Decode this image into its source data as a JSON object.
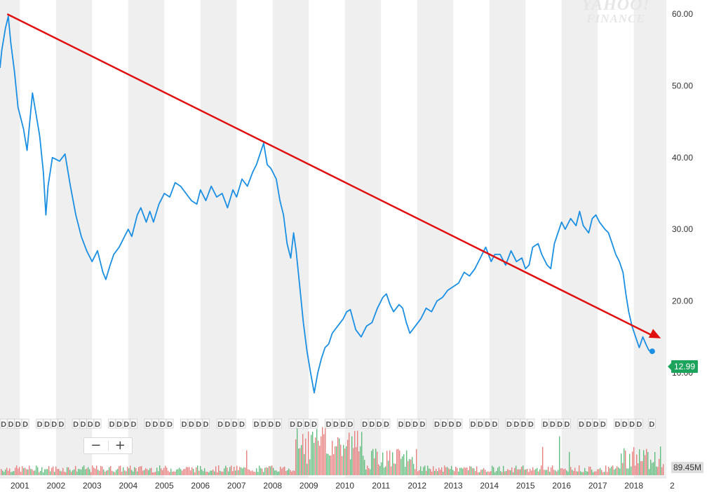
{
  "watermark": {
    "line1": "YAHOO!",
    "line2": "FINANCE"
  },
  "zoom": {
    "minus": "−",
    "plus": "+"
  },
  "badges": {
    "last_price": "12.99",
    "volume": "89.45M"
  },
  "colors": {
    "price_line": "#1a8fe3",
    "trend_arrow": "#e01010",
    "vol_up": "#48b36a",
    "vol_down": "#e46a6a",
    "band": "#efefef",
    "price_badge": "#1ca35c"
  },
  "chart_data": {
    "type": "line",
    "x_unit": "year",
    "xlim": [
      2000.45,
      2018.9
    ],
    "ylim": [
      5,
      60.5
    ],
    "y_ticks": [
      10,
      20,
      30,
      40,
      50,
      60
    ],
    "y_tick_labels": [
      "10.00",
      "20.00",
      "30.00",
      "40.00",
      "50.00",
      "60.00"
    ],
    "x_ticks": [
      2001,
      2002,
      2003,
      2004,
      2005,
      2006,
      2007,
      2008,
      2009,
      2010,
      2011,
      2012,
      2013,
      2014,
      2015,
      2016,
      2017,
      2018
    ],
    "x_tick_labels": [
      "2001",
      "2002",
      "2003",
      "2004",
      "2005",
      "2006",
      "2007",
      "2008",
      "2009",
      "2010",
      "2011",
      "2012",
      "2013",
      "2014",
      "2015",
      "2016",
      "2017",
      "2018"
    ],
    "x_tick_cutoff_label": "2",
    "series": [
      {
        "values": [
          [
            2000.45,
            52.5
          ],
          [
            2000.5,
            55
          ],
          [
            2000.6,
            58
          ],
          [
            2000.68,
            59.7
          ],
          [
            2000.75,
            56
          ],
          [
            2000.85,
            52
          ],
          [
            2000.95,
            47
          ],
          [
            2001.1,
            44
          ],
          [
            2001.2,
            41
          ],
          [
            2001.35,
            49
          ],
          [
            2001.45,
            46
          ],
          [
            2001.55,
            43
          ],
          [
            2001.65,
            38
          ],
          [
            2001.72,
            32
          ],
          [
            2001.78,
            36
          ],
          [
            2001.9,
            40
          ],
          [
            2002.1,
            39.5
          ],
          [
            2002.25,
            40.5
          ],
          [
            2002.4,
            36
          ],
          [
            2002.55,
            32
          ],
          [
            2002.7,
            29
          ],
          [
            2002.85,
            27
          ],
          [
            2003.0,
            25.5
          ],
          [
            2003.15,
            27
          ],
          [
            2003.3,
            24
          ],
          [
            2003.38,
            23
          ],
          [
            2003.5,
            25
          ],
          [
            2003.6,
            26.5
          ],
          [
            2003.75,
            27.5
          ],
          [
            2003.9,
            29
          ],
          [
            2004.0,
            30
          ],
          [
            2004.1,
            29
          ],
          [
            2004.25,
            32
          ],
          [
            2004.35,
            33
          ],
          [
            2004.5,
            31
          ],
          [
            2004.6,
            32.5
          ],
          [
            2004.7,
            31
          ],
          [
            2004.85,
            33.5
          ],
          [
            2005.0,
            35
          ],
          [
            2005.15,
            34.5
          ],
          [
            2005.3,
            36.5
          ],
          [
            2005.45,
            36
          ],
          [
            2005.6,
            35
          ],
          [
            2005.75,
            34
          ],
          [
            2005.9,
            33.5
          ],
          [
            2006.0,
            35.5
          ],
          [
            2006.15,
            34
          ],
          [
            2006.3,
            36
          ],
          [
            2006.45,
            34.5
          ],
          [
            2006.6,
            35
          ],
          [
            2006.75,
            33
          ],
          [
            2006.9,
            35.5
          ],
          [
            2007.0,
            34.5
          ],
          [
            2007.15,
            37
          ],
          [
            2007.3,
            36
          ],
          [
            2007.45,
            38
          ],
          [
            2007.55,
            39
          ],
          [
            2007.65,
            40.5
          ],
          [
            2007.75,
            42
          ],
          [
            2007.85,
            39
          ],
          [
            2007.95,
            38.5
          ],
          [
            2008.1,
            37
          ],
          [
            2008.2,
            34
          ],
          [
            2008.3,
            32
          ],
          [
            2008.4,
            28
          ],
          [
            2008.5,
            26
          ],
          [
            2008.58,
            29.5
          ],
          [
            2008.65,
            27
          ],
          [
            2008.75,
            22
          ],
          [
            2008.85,
            17
          ],
          [
            2008.95,
            13
          ],
          [
            2009.05,
            10
          ],
          [
            2009.15,
            7.2
          ],
          [
            2009.25,
            10
          ],
          [
            2009.35,
            12
          ],
          [
            2009.45,
            13.5
          ],
          [
            2009.55,
            14
          ],
          [
            2009.65,
            15.5
          ],
          [
            2009.8,
            16.5
          ],
          [
            2009.95,
            17.5
          ],
          [
            2010.05,
            18.5
          ],
          [
            2010.15,
            18.8
          ],
          [
            2010.3,
            16
          ],
          [
            2010.45,
            15
          ],
          [
            2010.6,
            16.5
          ],
          [
            2010.75,
            17
          ],
          [
            2010.9,
            19
          ],
          [
            2011.05,
            20.5
          ],
          [
            2011.15,
            21
          ],
          [
            2011.25,
            19.5
          ],
          [
            2011.35,
            18.5
          ],
          [
            2011.5,
            19.5
          ],
          [
            2011.6,
            19
          ],
          [
            2011.7,
            17
          ],
          [
            2011.8,
            15.5
          ],
          [
            2011.95,
            16.5
          ],
          [
            2012.1,
            17.5
          ],
          [
            2012.25,
            19
          ],
          [
            2012.4,
            18.5
          ],
          [
            2012.55,
            20
          ],
          [
            2012.7,
            20.5
          ],
          [
            2012.85,
            21.5
          ],
          [
            2013.0,
            22
          ],
          [
            2013.15,
            22.5
          ],
          [
            2013.3,
            24
          ],
          [
            2013.45,
            23.5
          ],
          [
            2013.6,
            24.5
          ],
          [
            2013.75,
            26
          ],
          [
            2013.9,
            27.5
          ],
          [
            2014.05,
            25.5
          ],
          [
            2014.15,
            26.5
          ],
          [
            2014.3,
            26.5
          ],
          [
            2014.45,
            25
          ],
          [
            2014.6,
            27
          ],
          [
            2014.75,
            25.5
          ],
          [
            2014.9,
            26
          ],
          [
            2015.0,
            24.5
          ],
          [
            2015.1,
            25
          ],
          [
            2015.2,
            27.5
          ],
          [
            2015.35,
            28
          ],
          [
            2015.45,
            26.5
          ],
          [
            2015.6,
            25
          ],
          [
            2015.7,
            24.5
          ],
          [
            2015.8,
            28
          ],
          [
            2015.9,
            29.5
          ],
          [
            2016.0,
            31
          ],
          [
            2016.1,
            30
          ],
          [
            2016.25,
            31.5
          ],
          [
            2016.4,
            30.5
          ],
          [
            2016.5,
            32.5
          ],
          [
            2016.6,
            30.5
          ],
          [
            2016.75,
            29.5
          ],
          [
            2016.85,
            31.5
          ],
          [
            2016.95,
            32
          ],
          [
            2017.05,
            31
          ],
          [
            2017.2,
            30
          ],
          [
            2017.3,
            29.5
          ],
          [
            2017.4,
            28
          ],
          [
            2017.5,
            26.5
          ],
          [
            2017.6,
            25.5
          ],
          [
            2017.7,
            24
          ],
          [
            2017.78,
            21
          ],
          [
            2017.86,
            18.5
          ],
          [
            2017.95,
            16.5
          ],
          [
            2018.05,
            15
          ],
          [
            2018.15,
            13.5
          ],
          [
            2018.25,
            15
          ],
          [
            2018.35,
            13.8
          ],
          [
            2018.42,
            13.1
          ],
          [
            2018.47,
            12.99
          ]
        ]
      }
    ],
    "trend_arrow": {
      "from": [
        2000.65,
        60
      ],
      "to": [
        2018.75,
        14.8
      ]
    },
    "last_point": [
      2018.47,
      12.99
    ],
    "volume": {
      "unit": "M",
      "last": 89.45
    },
    "dividend_marker_label": "D",
    "dividend_markers": [
      2000.55,
      2000.75,
      2000.95,
      2001.15,
      2001.55,
      2001.75,
      2001.95,
      2002.15,
      2002.55,
      2002.75,
      2002.95,
      2003.15,
      2003.55,
      2003.75,
      2003.95,
      2004.15,
      2004.55,
      2004.75,
      2004.95,
      2005.15,
      2005.55,
      2005.75,
      2005.95,
      2006.15,
      2006.55,
      2006.75,
      2006.95,
      2007.15,
      2007.55,
      2007.75,
      2007.95,
      2008.15,
      2008.55,
      2008.75,
      2008.95,
      2009.15,
      2009.55,
      2009.75,
      2009.95,
      2010.15,
      2010.55,
      2010.75,
      2010.95,
      2011.15,
      2011.55,
      2011.75,
      2011.95,
      2012.15,
      2012.55,
      2012.75,
      2012.95,
      2013.15,
      2013.55,
      2013.75,
      2013.95,
      2014.15,
      2014.55,
      2014.75,
      2014.95,
      2015.15,
      2015.55,
      2015.75,
      2015.95,
      2016.15,
      2016.55,
      2016.75,
      2016.95,
      2017.15,
      2017.55,
      2017.75,
      2017.95,
      2018.15,
      2018.5
    ],
    "grid": false,
    "shaded_alternate_years": true
  }
}
